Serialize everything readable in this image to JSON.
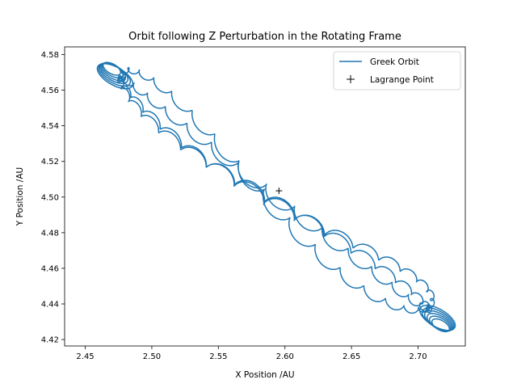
{
  "chart_data": {
    "type": "line",
    "title": "Orbit following Z Perturbation in the Rotating Frame",
    "xlabel": "X Position /AU",
    "ylabel": "Y Position /AU",
    "xlim": [
      2.4345,
      2.7355
    ],
    "ylim": [
      4.4164,
      4.5843
    ],
    "xticks": [
      "2.45",
      "2.50",
      "2.55",
      "2.60",
      "2.65",
      "2.70"
    ],
    "xtick_values": [
      2.45,
      2.5,
      2.55,
      2.6,
      2.65,
      2.7
    ],
    "yticks": [
      "4.42",
      "4.44",
      "4.46",
      "4.48",
      "4.50",
      "4.52",
      "4.54",
      "4.56",
      "4.58"
    ],
    "ytick_values": [
      4.42,
      4.44,
      4.46,
      4.48,
      4.5,
      4.52,
      4.54,
      4.56,
      4.58
    ],
    "grid": false,
    "legend_position": "top-right",
    "series": [
      {
        "name": "Greek Orbit",
        "style": "line",
        "color": "#1f77b4",
        "path": {
          "band_start": [
            2.475,
            4.565
          ],
          "band_end": [
            2.708,
            4.436
          ],
          "band_halfwidth": 0.014,
          "loops": 34,
          "turning_ends": [
            [
              2.47,
              4.572
            ],
            [
              2.717,
              4.428
            ]
          ]
        }
      },
      {
        "name": "Lagrange Point",
        "style": "marker",
        "marker": "+",
        "color": "#000000",
        "points": [
          [
            2.5955,
            4.5035
          ]
        ]
      }
    ]
  }
}
